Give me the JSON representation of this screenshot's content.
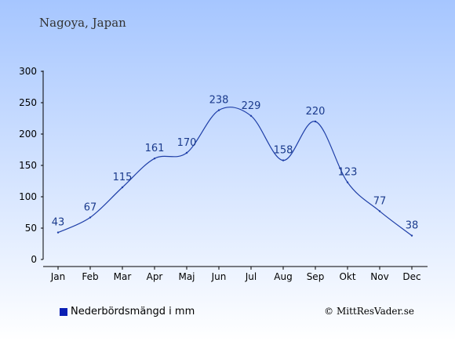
{
  "chart_data": {
    "type": "line",
    "title": "Nagoya, Japan",
    "categories": [
      "Jan",
      "Feb",
      "Mar",
      "Apr",
      "Maj",
      "Jun",
      "Jul",
      "Aug",
      "Sep",
      "Okt",
      "Nov",
      "Dec"
    ],
    "series": [
      {
        "name": "Nederbördsmängd i mm",
        "values": [
          43,
          67,
          115,
          161,
          170,
          238,
          229,
          158,
          220,
          123,
          77,
          38
        ]
      }
    ],
    "ylim": [
      0,
      300
    ],
    "yticks": [
      0,
      50,
      100,
      150,
      200,
      250,
      300
    ],
    "ytick_labels": [
      "0",
      "50",
      "100",
      "150",
      "200",
      "250",
      "300"
    ],
    "grid": false,
    "legend_position": "bottom-left",
    "line_color": "#1f3fa8",
    "swatch_color": "#0a1fb5"
  },
  "credit": "© MittResVader.se"
}
